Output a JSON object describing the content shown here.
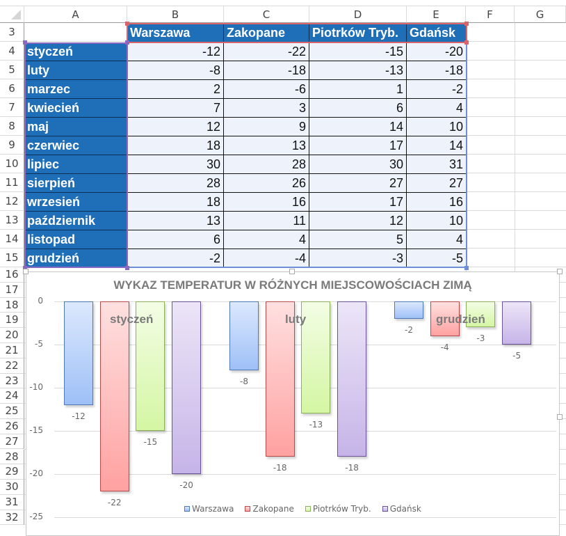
{
  "spreadsheet": {
    "columns": [
      "A",
      "B",
      "C",
      "D",
      "E",
      "F",
      "G"
    ],
    "rows": [
      "3",
      "4",
      "5",
      "6",
      "7",
      "8",
      "9",
      "10",
      "11",
      "12",
      "13",
      "14",
      "15",
      "16",
      "17",
      "18",
      "19",
      "20",
      "21",
      "22",
      "23",
      "24",
      "25",
      "26",
      "27",
      "28",
      "29",
      "30",
      "31",
      "32"
    ],
    "header_row": [
      "Warszawa",
      "Zakopane",
      "Piotrków Tryb.",
      "Gdańsk"
    ],
    "data": [
      {
        "month": "styczeń",
        "values": [
          "-12",
          "-22",
          "-15",
          "-20"
        ]
      },
      {
        "month": "luty",
        "values": [
          "-8",
          "-18",
          "-13",
          "-18"
        ]
      },
      {
        "month": "marzec",
        "values": [
          "2",
          "-6",
          "1",
          "-2"
        ]
      },
      {
        "month": "kwiecień",
        "values": [
          "7",
          "3",
          "6",
          "4"
        ]
      },
      {
        "month": "maj",
        "values": [
          "12",
          "9",
          "14",
          "10"
        ]
      },
      {
        "month": "czerwiec",
        "values": [
          "18",
          "13",
          "17",
          "14"
        ]
      },
      {
        "month": "lipiec",
        "values": [
          "30",
          "28",
          "30",
          "31"
        ]
      },
      {
        "month": "sierpień",
        "values": [
          "28",
          "26",
          "27",
          "27"
        ]
      },
      {
        "month": "wrzesień",
        "values": [
          "18",
          "16",
          "17",
          "16"
        ]
      },
      {
        "month": "październik",
        "values": [
          "13",
          "11",
          "12",
          "10"
        ]
      },
      {
        "month": "listopad",
        "values": [
          "6",
          "4",
          "5",
          "4"
        ]
      },
      {
        "month": "grudzień",
        "values": [
          "-2",
          "-4",
          "-3",
          "-5"
        ]
      }
    ]
  },
  "colors": {
    "header_fill": "#1f6fb8",
    "value_fill": "#eef2fb",
    "warszawa": "#9ec0f7",
    "zakopane": "#ffa1a1",
    "piotrkow": "#d4f6a3",
    "gdansk": "#c6b4e8"
  },
  "chart_data": {
    "type": "bar",
    "title": "WYKAZ TEMPERATUR W RÓŻNYCH MIEJSCOWOŚCIACH ZIMĄ",
    "categories": [
      "styczeń",
      "luty",
      "grudzień"
    ],
    "series": [
      {
        "name": "Warszawa",
        "values": [
          -12,
          -8,
          -2
        ]
      },
      {
        "name": "Zakopane",
        "values": [
          -22,
          -18,
          -4
        ]
      },
      {
        "name": "Piotrków Tryb.",
        "values": [
          -15,
          -13,
          -3
        ]
      },
      {
        "name": "Gdańsk",
        "values": [
          -20,
          -18,
          -5
        ]
      }
    ],
    "yticks": [
      "0",
      "-5",
      "-10",
      "-15",
      "-20",
      "-25"
    ],
    "ylim": [
      -25,
      0
    ],
    "xlabel": "",
    "ylabel": "",
    "grid": true,
    "legend_position": "bottom",
    "data_labels": true,
    "category_labels_position": "inside-top"
  }
}
